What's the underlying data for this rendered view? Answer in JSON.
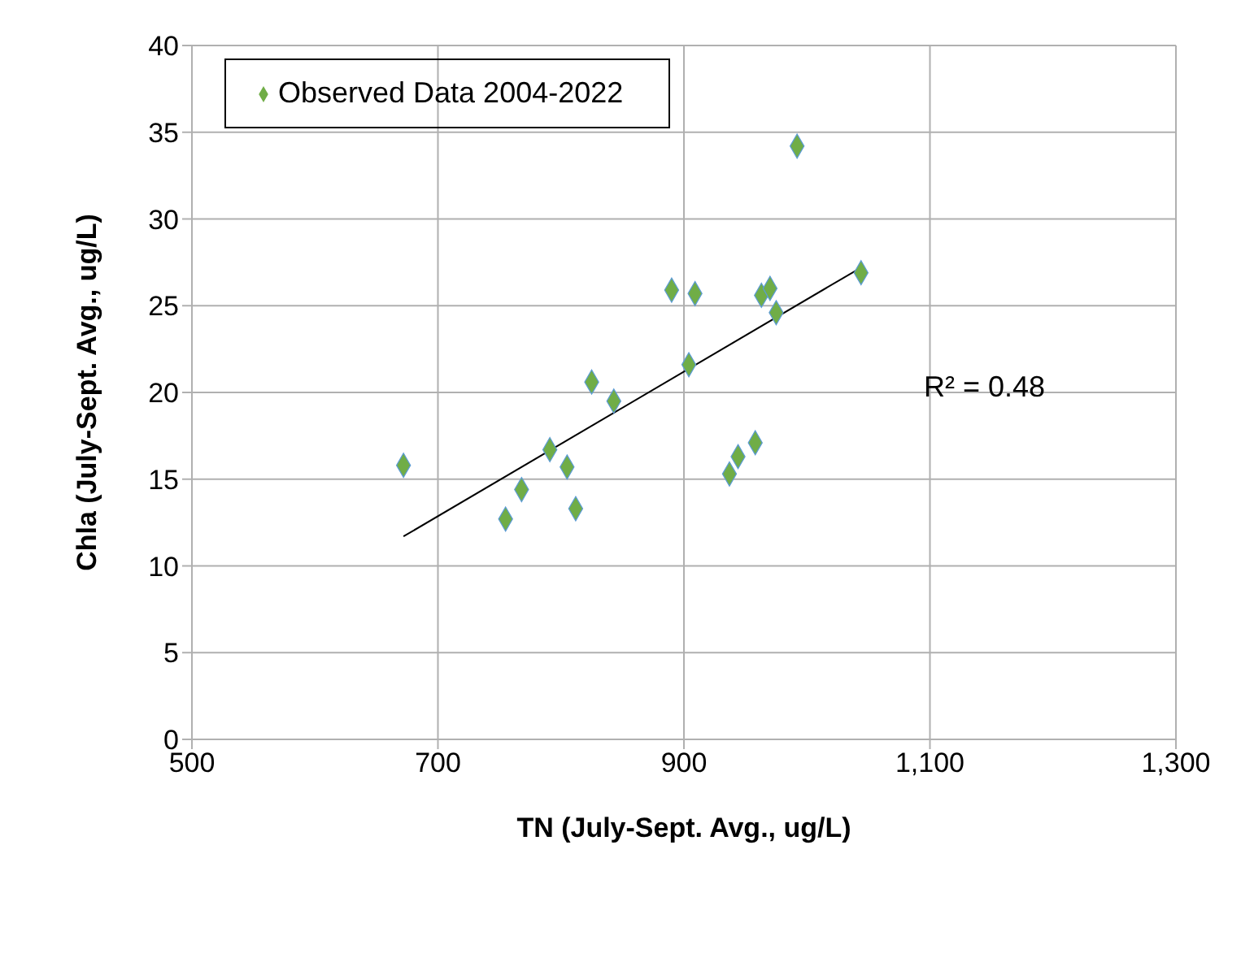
{
  "chart_data": {
    "type": "scatter",
    "xlabel": "TN (July-Sept. Avg., ug/L)",
    "ylabel": "Chla (July-Sept. Avg., ug/L)",
    "series": [
      {
        "name": "Observed Data 2004-2022",
        "color": "#70ad47",
        "x": [
          672,
          755,
          768,
          791,
          805,
          812,
          825,
          843,
          890,
          904,
          909,
          937,
          944,
          958,
          963,
          970,
          975,
          992,
          1044
        ],
        "values": [
          15.8,
          12.7,
          14.4,
          16.7,
          15.7,
          13.3,
          20.6,
          19.5,
          25.9,
          21.6,
          25.7,
          15.3,
          16.3,
          17.1,
          25.6,
          26.0,
          24.6,
          34.2,
          26.9
        ]
      },
      {
        "type": "line",
        "marker": "none",
        "color": "#000000",
        "x": [
          672,
          1044
        ],
        "values": [
          11.7,
          27.2
        ]
      }
    ],
    "annotations": [
      "R² = 0.48"
    ],
    "xlim": [
      500,
      1300
    ],
    "xticks": [
      500,
      700,
      900,
      {
        "value": 1100,
        "label": "1,100"
      },
      {
        "value": 1300,
        "label": "1,300"
      }
    ],
    "ylim": [
      0,
      40
    ],
    "yticks": [
      0,
      5,
      10,
      15,
      20,
      25,
      30,
      35,
      40
    ],
    "grid": true,
    "legend": "top left",
    "marker": "diamond"
  }
}
